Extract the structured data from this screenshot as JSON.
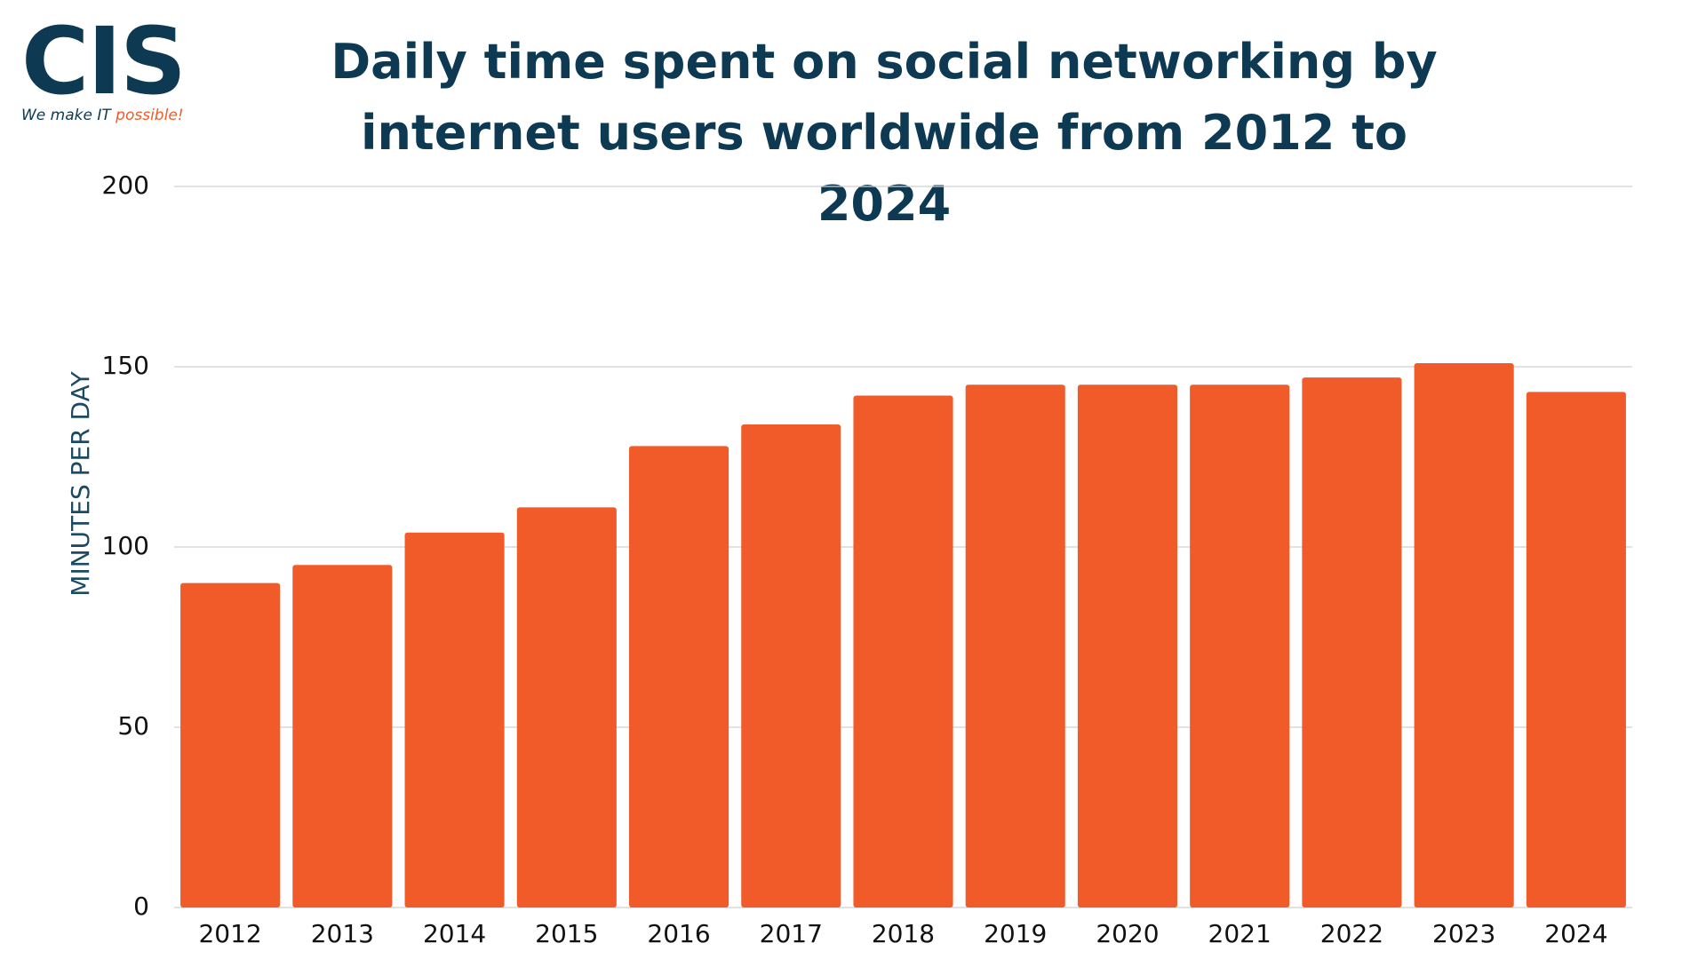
{
  "logo": {
    "name": "CIS",
    "tagline_start": "We make IT",
    "tagline_end": "possible!"
  },
  "chart_data": {
    "type": "bar",
    "title": "Daily time spent on social networking by internet users worldwide from 2012 to 2024",
    "y_label": "MINUTES PER DAY",
    "categories": [
      "2012",
      "2013",
      "2014",
      "2015",
      "2016",
      "2017",
      "2018",
      "2019",
      "2020",
      "2021",
      "2022",
      "2023",
      "2024"
    ],
    "values": [
      90,
      95,
      104,
      111,
      128,
      134,
      142,
      145,
      145,
      145,
      147,
      151,
      143
    ],
    "color": "#f15a29",
    "ylim": [
      0,
      200
    ],
    "yticks": [
      0,
      50,
      100,
      150,
      200
    ],
    "grid": true
  }
}
